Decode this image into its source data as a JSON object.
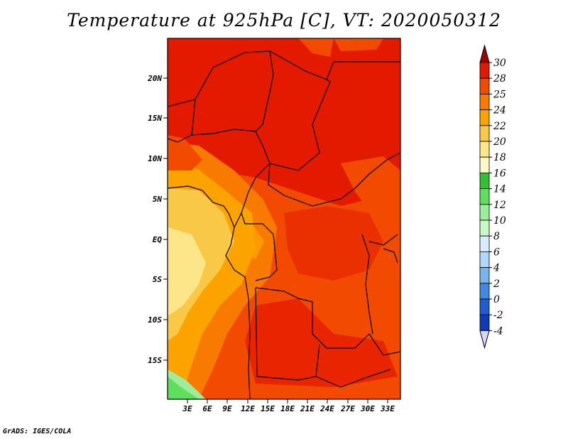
{
  "title": "Temperature at 925hPa [C], VT: 2020050312",
  "footer": "GrADS: IGES/COLA",
  "map": {
    "lon_labels": [
      "3E",
      "6E",
      "9E",
      "12E",
      "15E",
      "18E",
      "21E",
      "24E",
      "27E",
      "30E",
      "33E"
    ],
    "lat_labels": [
      "20N",
      "15N",
      "10N",
      "5N",
      "EQ",
      "5S",
      "10S",
      "15S"
    ]
  },
  "colorbar": {
    "levels": [
      "30",
      "28",
      "25",
      "24",
      "22",
      "20",
      "18",
      "16",
      "14",
      "12",
      "10",
      "8",
      "6",
      "4",
      "2",
      "0",
      "-2",
      "-4"
    ],
    "colors": [
      "#a00000",
      "#e41a00",
      "#f24a00",
      "#f87a00",
      "#fca300",
      "#f8c846",
      "#fde68a",
      "#fff8c8",
      "#33c033",
      "#5ee05e",
      "#9cee9c",
      "#c8f8c8",
      "#d8ecff",
      "#b0d8ff",
      "#78b4f0",
      "#4088e0",
      "#1e5cd0",
      "#0d3cb4",
      "#001070"
    ]
  },
  "colors": {
    "hot": "#e41a00",
    "warm": "#f24a00",
    "orange": "#f87a00",
    "amber": "#fca300",
    "yellow": "#f8c846",
    "pale": "#fde68a",
    "cream": "#fff8c8",
    "green": "#5ee05e"
  }
}
